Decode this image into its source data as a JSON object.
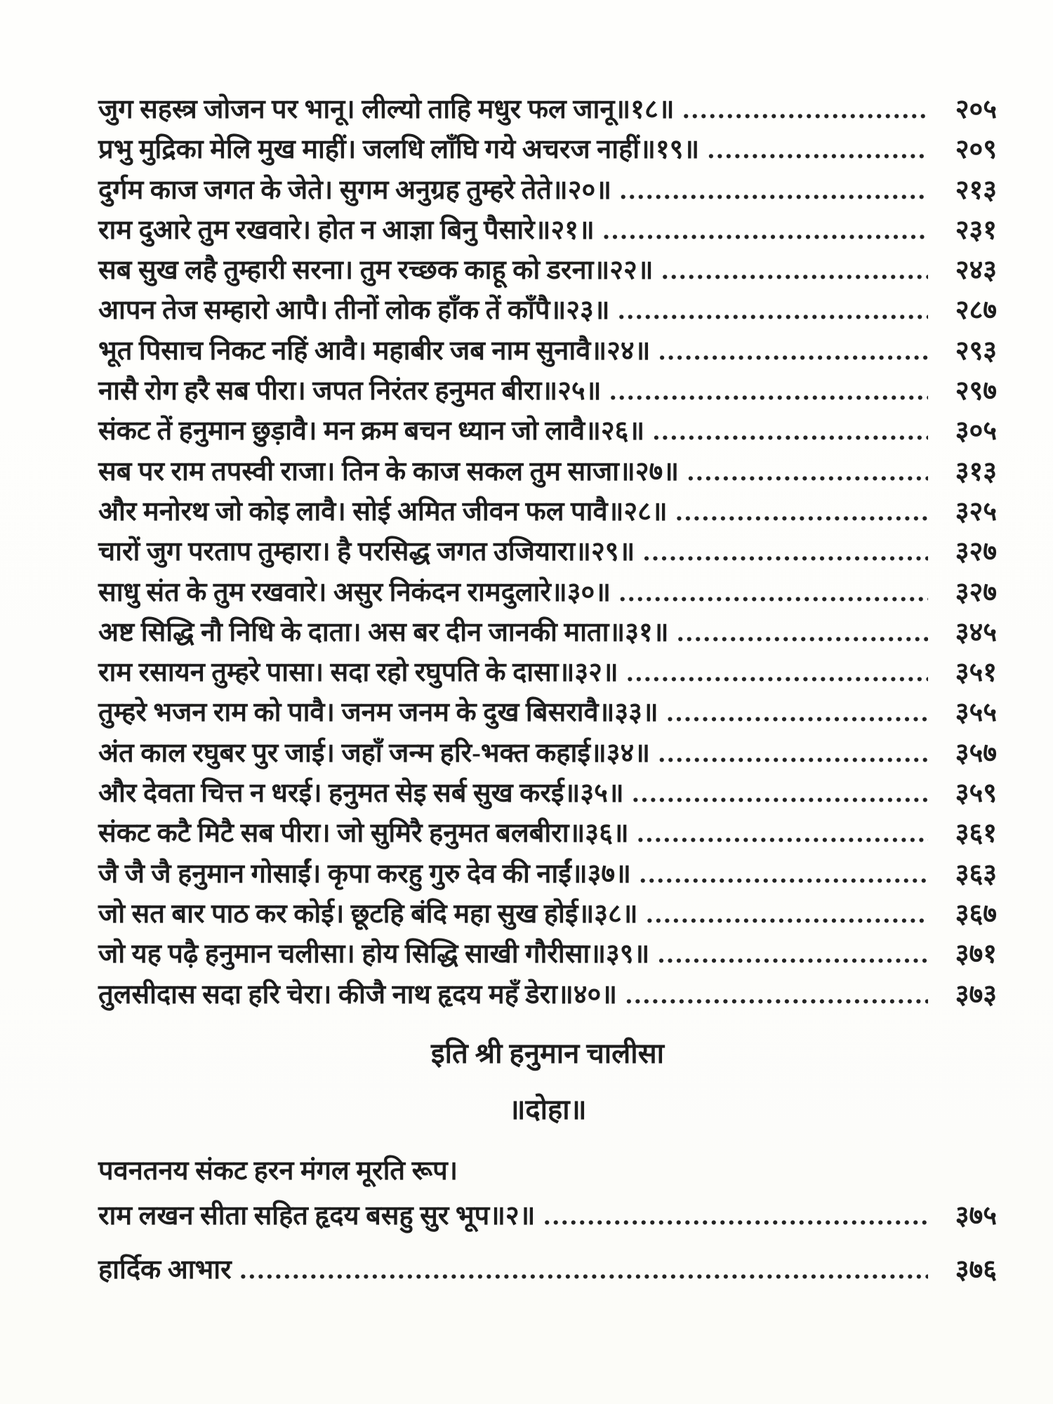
{
  "page": {
    "background_color": "#fdfdfb",
    "text_color": "#1d1d1d"
  },
  "toc": {
    "entries": [
      {
        "text": "जुग सहस्त्र जोजन पर भानू। लील्यो ताहि मधुर फल जानू॥१८॥",
        "page": "२०५"
      },
      {
        "text": "प्रभु मुद्रिका मेलि मुख माहीं। जलधि लाँघि गये अचरज नाहीं॥१९॥",
        "page": "२०९"
      },
      {
        "text": "दुर्गम काज जगत के जेते। सुगम अनुग्रह तुम्हरे तेते॥२०॥",
        "page": "२१३"
      },
      {
        "text": "राम दुआरे तुम रखवारे। होत न आज्ञा बिनु पैसारे॥२१॥",
        "page": "२३१"
      },
      {
        "text": "सब सुख लहै तुम्हारी सरना। तुम रच्छक काहू को डरना॥२२॥",
        "page": "२४३"
      },
      {
        "text": "आपन तेज सम्हारो आपै। तीनों लोक हाँक तें काँपै॥२३॥",
        "page": "२८७"
      },
      {
        "text": "भूत पिसाच निकट नहिं आवै। महाबीर जब नाम सुनावै॥२४॥",
        "page": "२९३"
      },
      {
        "text": "नासै रोग हरै सब पीरा। जपत निरंतर हनुमत बीरा॥२५॥",
        "page": "२९७"
      },
      {
        "text": "संकट तें हनुमान छुड़ावै। मन क्रम बचन ध्यान जो लावै॥२६॥",
        "page": "३०५"
      },
      {
        "text": "सब पर राम तपस्वी राजा। तिन के काज सकल तुम साजा॥२७॥",
        "page": "३१३"
      },
      {
        "text": "और मनोरथ जो कोइ लावै। सोई अमित जीवन फल पावै॥२८॥",
        "page": "३२५"
      },
      {
        "text": "चारों जुग परताप तुम्हारा। है परसिद्ध जगत उजियारा॥२९॥",
        "page": "३२७"
      },
      {
        "text": "साधु संत के तुम रखवारे। असुर निकंदन रामदुलारे॥३०॥",
        "page": "३२७"
      },
      {
        "text": "अष्ट सिद्धि नौ निधि के दाता। अस बर दीन जानकी माता॥३१॥",
        "page": "३४५"
      },
      {
        "text": "राम रसायन तुम्हरे पासा। सदा रहो रघुपति के दासा॥३२॥",
        "page": "३५१"
      },
      {
        "text": "तुम्हरे भजन राम को पावै। जनम जनम के दुख बिसरावै॥३३॥",
        "page": "३५५"
      },
      {
        "text": "अंत काल रघुबर पुर जाई। जहाँ जन्म हरि-भक्त कहाई॥३४॥",
        "page": "३५७"
      },
      {
        "text": "और देवता चित्त न धरई। हनुमत सेइ सर्ब सुख करई॥३५॥",
        "page": "३५९"
      },
      {
        "text": "संकट कटै मिटै सब पीरा। जो सुमिरै हनुमत बलबीरा॥३६॥",
        "page": "३६१"
      },
      {
        "text": "जै जै जै हनुमान गोसाईं। कृपा करहु गुरु देव की नाईं॥३७॥",
        "page": "३६३"
      },
      {
        "text": "जो सत बार पाठ कर कोई। छूटहि बंदि महा सुख होई॥३८॥",
        "page": "३६७"
      },
      {
        "text": "जो यह पढ़ै हनुमान चलीसा। होय सिद्धि साखी गौरीसा॥३९॥",
        "page": "३७१"
      },
      {
        "text": "तुलसीदास सदा हरि चेरा। कीजै नाथ हृदय महँ डेरा॥४०॥",
        "page": "३७३"
      }
    ]
  },
  "headings": {
    "end_title": "इति श्री हनुमान चालीसा",
    "doha": "॥दोहा॥"
  },
  "doha": {
    "line1": "पवनतनय संकट हरन मंगल मूरति रूप।",
    "line2": "राम लखन सीता सहित हृदय बसहु सुर भूप॥२॥",
    "line2_page": "३७५"
  },
  "footer": {
    "acknowledgement": "हार्दिक आभार",
    "acknowledgement_page": "३७६"
  }
}
